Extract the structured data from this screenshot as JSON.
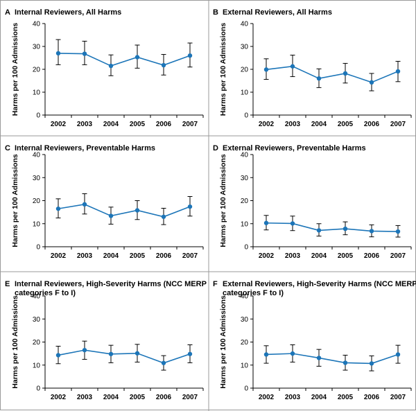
{
  "figure": {
    "series_color": "#1c75b8"
  },
  "chart_data": [
    {
      "type": "line",
      "letter": "A",
      "title_lines": [
        "Internal Reviewers, All Harms"
      ],
      "xlabel": "",
      "ylabel": "Harms per 100 Admissions",
      "categories": [
        "2002",
        "2003",
        "2004",
        "2005",
        "2006",
        "2007"
      ],
      "values": [
        27.0,
        26.8,
        21.5,
        25.3,
        21.8,
        26.0
      ],
      "err_low": [
        22.0,
        22.0,
        17.2,
        20.5,
        17.5,
        21.0
      ],
      "err_high": [
        33.0,
        32.3,
        26.3,
        30.6,
        26.5,
        31.5
      ],
      "yticks": [
        0,
        10,
        20,
        30,
        40
      ],
      "ylim": [
        0,
        40
      ]
    },
    {
      "type": "line",
      "letter": "B",
      "title_lines": [
        "External Reviewers, All Harms"
      ],
      "xlabel": "",
      "ylabel": "Harms per 100 Admissions",
      "categories": [
        "2002",
        "2003",
        "2004",
        "2005",
        "2006",
        "2007"
      ],
      "values": [
        19.9,
        21.3,
        16.0,
        18.2,
        14.3,
        19.1
      ],
      "err_low": [
        15.6,
        16.8,
        12.0,
        14.0,
        10.6,
        14.6
      ],
      "err_high": [
        24.6,
        26.2,
        20.2,
        22.6,
        18.2,
        23.5
      ],
      "yticks": [
        0,
        10,
        20,
        30,
        40
      ],
      "ylim": [
        0,
        40
      ]
    },
    {
      "type": "line",
      "letter": "C",
      "title_lines": [
        "Internal Reviewers, Preventable Harms"
      ],
      "xlabel": "",
      "ylabel": "Harms per 100 Admissions",
      "categories": [
        "2002",
        "2003",
        "2004",
        "2005",
        "2006",
        "2007"
      ],
      "values": [
        16.5,
        18.4,
        13.4,
        15.8,
        13.0,
        17.4
      ],
      "err_low": [
        12.5,
        14.2,
        9.8,
        11.8,
        9.6,
        13.3
      ],
      "err_high": [
        20.8,
        23.0,
        17.2,
        20.0,
        16.7,
        21.8
      ],
      "yticks": [
        0,
        10,
        20,
        30,
        40
      ],
      "ylim": [
        0,
        40
      ]
    },
    {
      "type": "line",
      "letter": "D",
      "title_lines": [
        "External Reviewers, Preventable Harms"
      ],
      "xlabel": "",
      "ylabel": "Harms per 100 Admissions",
      "categories": [
        "2002",
        "2003",
        "2004",
        "2005",
        "2006",
        "2007"
      ],
      "values": [
        10.3,
        10.1,
        7.1,
        7.8,
        6.8,
        6.6
      ],
      "err_low": [
        7.3,
        7.0,
        4.6,
        5.2,
        4.3,
        4.2
      ],
      "err_high": [
        13.6,
        13.3,
        10.0,
        10.8,
        9.5,
        9.2
      ],
      "yticks": [
        0,
        10,
        20,
        30,
        40
      ],
      "ylim": [
        0,
        40
      ]
    },
    {
      "type": "line",
      "letter": "E",
      "title_lines": [
        "Internal Reviewers, High-Severity Harms (NCC MERP",
        "categories F to I)"
      ],
      "xlabel": "",
      "ylabel": "Harms per 100 Admissions",
      "categories": [
        "2002",
        "2003",
        "2004",
        "2005",
        "2006",
        "2007"
      ],
      "values": [
        14.3,
        16.5,
        14.8,
        15.1,
        10.9,
        14.8
      ],
      "err_low": [
        10.6,
        12.5,
        11.0,
        11.3,
        7.8,
        11.0
      ],
      "err_high": [
        18.2,
        20.4,
        18.6,
        19.0,
        14.1,
        18.8
      ],
      "yticks": [
        0,
        10,
        20,
        30,
        40
      ],
      "ylim": [
        0,
        40
      ]
    },
    {
      "type": "line",
      "letter": "F",
      "title_lines": [
        "External Reviewers, High-Severity Harms (NCC MERP",
        "categories F to I)"
      ],
      "xlabel": "",
      "ylabel": "Harms per 100 Admissions",
      "categories": [
        "2002",
        "2003",
        "2004",
        "2005",
        "2006",
        "2007"
      ],
      "values": [
        14.6,
        15.0,
        13.1,
        11.0,
        10.7,
        14.6
      ],
      "err_low": [
        10.8,
        11.3,
        9.5,
        7.8,
        7.5,
        10.8
      ],
      "err_high": [
        18.4,
        18.8,
        16.8,
        14.3,
        14.0,
        18.6
      ],
      "yticks": [
        0,
        10,
        20,
        30,
        40
      ],
      "ylim": [
        0,
        40
      ]
    }
  ]
}
